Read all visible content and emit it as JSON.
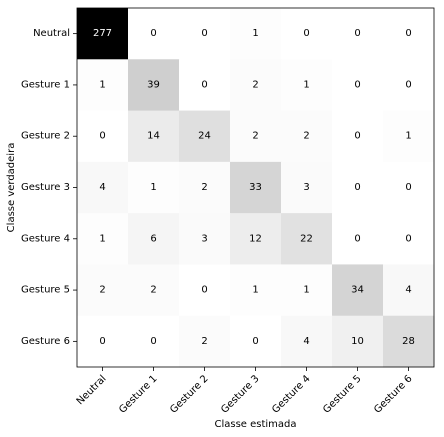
{
  "chart_data": {
    "type": "heatmap",
    "title": "",
    "xlabel": "Classe estimada",
    "ylabel": "Classe verdadeira",
    "x_categories": [
      "Neutral",
      "Gesture 1",
      "Gesture 2",
      "Gesture 3",
      "Gesture 4",
      "Gesture 5",
      "Gesture 6"
    ],
    "y_categories": [
      "Neutral",
      "Gesture 1",
      "Gesture 2",
      "Gesture 3",
      "Gesture 4",
      "Gesture 5",
      "Gesture 6"
    ],
    "matrix": [
      [
        277,
        0,
        0,
        1,
        0,
        0,
        0
      ],
      [
        1,
        39,
        0,
        2,
        1,
        0,
        0
      ],
      [
        0,
        14,
        24,
        2,
        2,
        0,
        1
      ],
      [
        4,
        1,
        2,
        33,
        3,
        0,
        0
      ],
      [
        1,
        6,
        3,
        12,
        22,
        0,
        0
      ],
      [
        2,
        2,
        0,
        1,
        1,
        34,
        4
      ],
      [
        0,
        0,
        2,
        0,
        4,
        10,
        28
      ]
    ],
    "colormap": "Greys",
    "value_range": [
      0,
      277
    ],
    "grid": false,
    "legend": "none"
  }
}
